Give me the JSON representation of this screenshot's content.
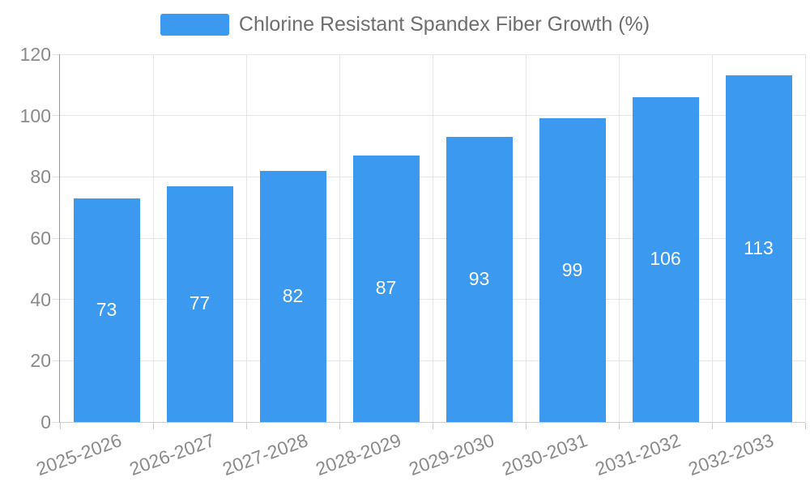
{
  "legend": {
    "label": "Chlorine Resistant Spandex Fiber Growth (%)"
  },
  "chart_data": {
    "type": "bar",
    "title": "Chlorine Resistant Spandex Fiber Growth (%)",
    "categories": [
      "2025-2026",
      "2026-2027",
      "2027-2028",
      "2028-2029",
      "2029-2030",
      "2030-2031",
      "2031-2032",
      "2032-2033"
    ],
    "values": [
      73,
      77,
      82,
      87,
      93,
      99,
      106,
      113
    ],
    "xlabel": "",
    "ylabel": "",
    "ylim": [
      0,
      120
    ],
    "ytick_interval": 20,
    "ytick_labels": [
      "0",
      "20",
      "40",
      "60",
      "80",
      "100",
      "120"
    ],
    "grid": true,
    "legend_position": "top",
    "x_label_rotation_deg": -20,
    "colors": {
      "bar": "#3B9AEF",
      "bar_value_label": "#FFFFFF",
      "axis_tick_label": "#8A8A8A",
      "legend_text": "#6E6E6E",
      "gridline": "#E6E6E6",
      "y_axis_line": "#999999",
      "x_axis_line": "#CCCCCC"
    }
  }
}
